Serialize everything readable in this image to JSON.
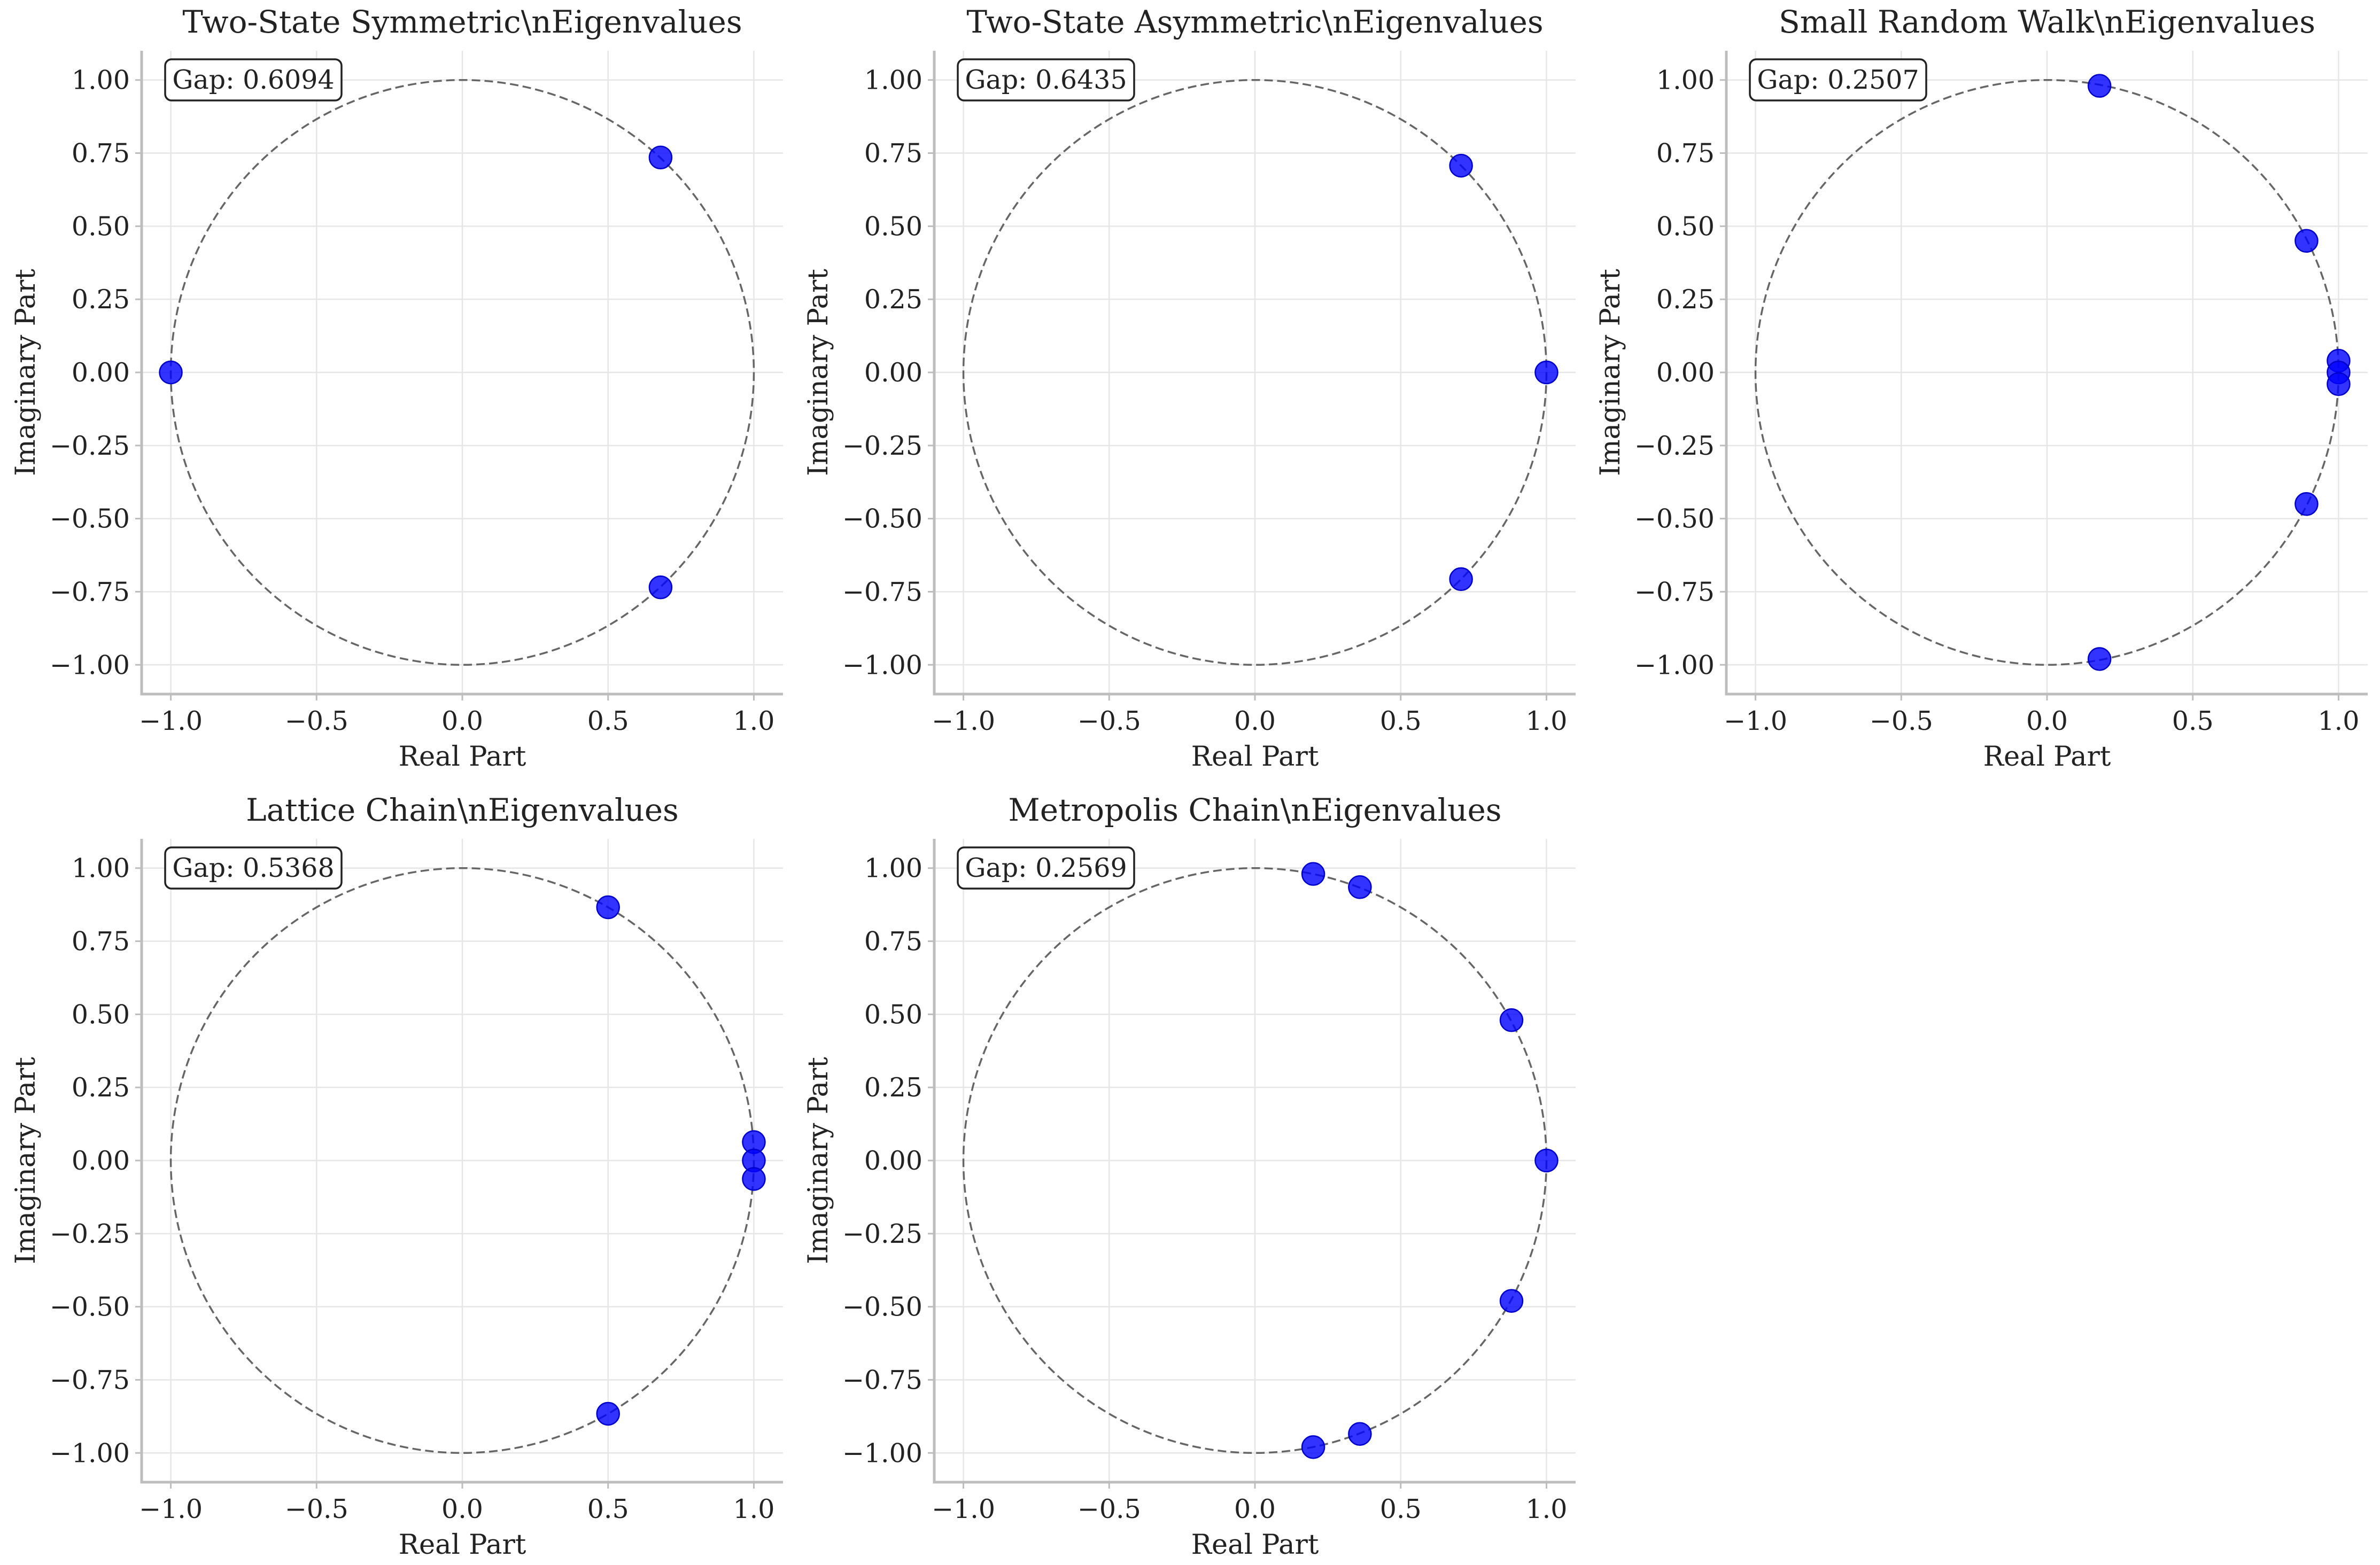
{
  "figure": {
    "x_ticks": [
      "−1.0",
      "−0.5",
      "0.0",
      "0.5",
      "1.0"
    ],
    "y_ticks": [
      "1.00",
      "0.75",
      "0.50",
      "0.25",
      "0.00",
      "−0.25",
      "−0.50",
      "−0.75",
      "−1.00"
    ]
  },
  "chart_data": [
    {
      "type": "scatter",
      "title": "Two-State Symmetric\\nEigenvalues",
      "xlabel": "Real Part",
      "ylabel": "Imaginary Part",
      "xlim": [
        -1.1,
        1.1
      ],
      "ylim": [
        -1.1,
        1.1
      ],
      "grid": true,
      "reference": "unit circle (dashed)",
      "annotation": "Gap: 0.6094",
      "point_color": "#0000ff",
      "points": [
        {
          "re": -1.0,
          "im": 0.0
        },
        {
          "re": 0.68,
          "im": 0.735
        },
        {
          "re": 0.68,
          "im": -0.735
        }
      ]
    },
    {
      "type": "scatter",
      "title": "Two-State Asymmetric\\nEigenvalues",
      "xlabel": "Real Part",
      "ylabel": "Imaginary Part",
      "xlim": [
        -1.1,
        1.1
      ],
      "ylim": [
        -1.1,
        1.1
      ],
      "grid": true,
      "reference": "unit circle (dashed)",
      "annotation": "Gap: 0.6435",
      "point_color": "#0000ff",
      "points": [
        {
          "re": 1.0,
          "im": 0.0
        },
        {
          "re": 0.707,
          "im": 0.707
        },
        {
          "re": 0.707,
          "im": -0.707
        }
      ]
    },
    {
      "type": "scatter",
      "title": "Small Random Walk\\nEigenvalues",
      "xlabel": "Real Part",
      "ylabel": "Imaginary Part",
      "xlim": [
        -1.1,
        1.1
      ],
      "ylim": [
        -1.1,
        1.1
      ],
      "grid": true,
      "reference": "unit circle (dashed)",
      "annotation": "Gap: 0.2507",
      "point_color": "#0000ff",
      "points": [
        {
          "re": 0.18,
          "im": 0.98
        },
        {
          "re": 0.89,
          "im": 0.45
        },
        {
          "re": 1.0,
          "im": 0.04
        },
        {
          "re": 1.0,
          "im": 0.0
        },
        {
          "re": 1.0,
          "im": -0.04
        },
        {
          "re": 0.89,
          "im": -0.45
        },
        {
          "re": 0.18,
          "im": -0.98
        }
      ]
    },
    {
      "type": "scatter",
      "title": "Lattice Chain\\nEigenvalues",
      "xlabel": "Real Part",
      "ylabel": "Imaginary Part",
      "xlim": [
        -1.1,
        1.1
      ],
      "ylim": [
        -1.1,
        1.1
      ],
      "grid": true,
      "reference": "unit circle (dashed)",
      "annotation": "Gap: 0.5368",
      "point_color": "#0000ff",
      "points": [
        {
          "re": 0.5,
          "im": 0.866
        },
        {
          "re": 1.0,
          "im": 0.063
        },
        {
          "re": 1.0,
          "im": 0.0
        },
        {
          "re": 1.0,
          "im": -0.063
        },
        {
          "re": 0.5,
          "im": -0.866
        }
      ]
    },
    {
      "type": "scatter",
      "title": "Metropolis Chain\\nEigenvalues",
      "xlabel": "Real Part",
      "ylabel": "Imaginary Part",
      "xlim": [
        -1.1,
        1.1
      ],
      "ylim": [
        -1.1,
        1.1
      ],
      "grid": true,
      "reference": "unit circle (dashed)",
      "annotation": "Gap: 0.2569",
      "point_color": "#0000ff",
      "points": [
        {
          "re": 0.2,
          "im": 0.98
        },
        {
          "re": 0.36,
          "im": 0.935
        },
        {
          "re": 0.88,
          "im": 0.48
        },
        {
          "re": 1.0,
          "im": 0.0
        },
        {
          "re": 0.88,
          "im": -0.48
        },
        {
          "re": 0.36,
          "im": -0.935
        },
        {
          "re": 0.2,
          "im": -0.98
        }
      ]
    }
  ]
}
